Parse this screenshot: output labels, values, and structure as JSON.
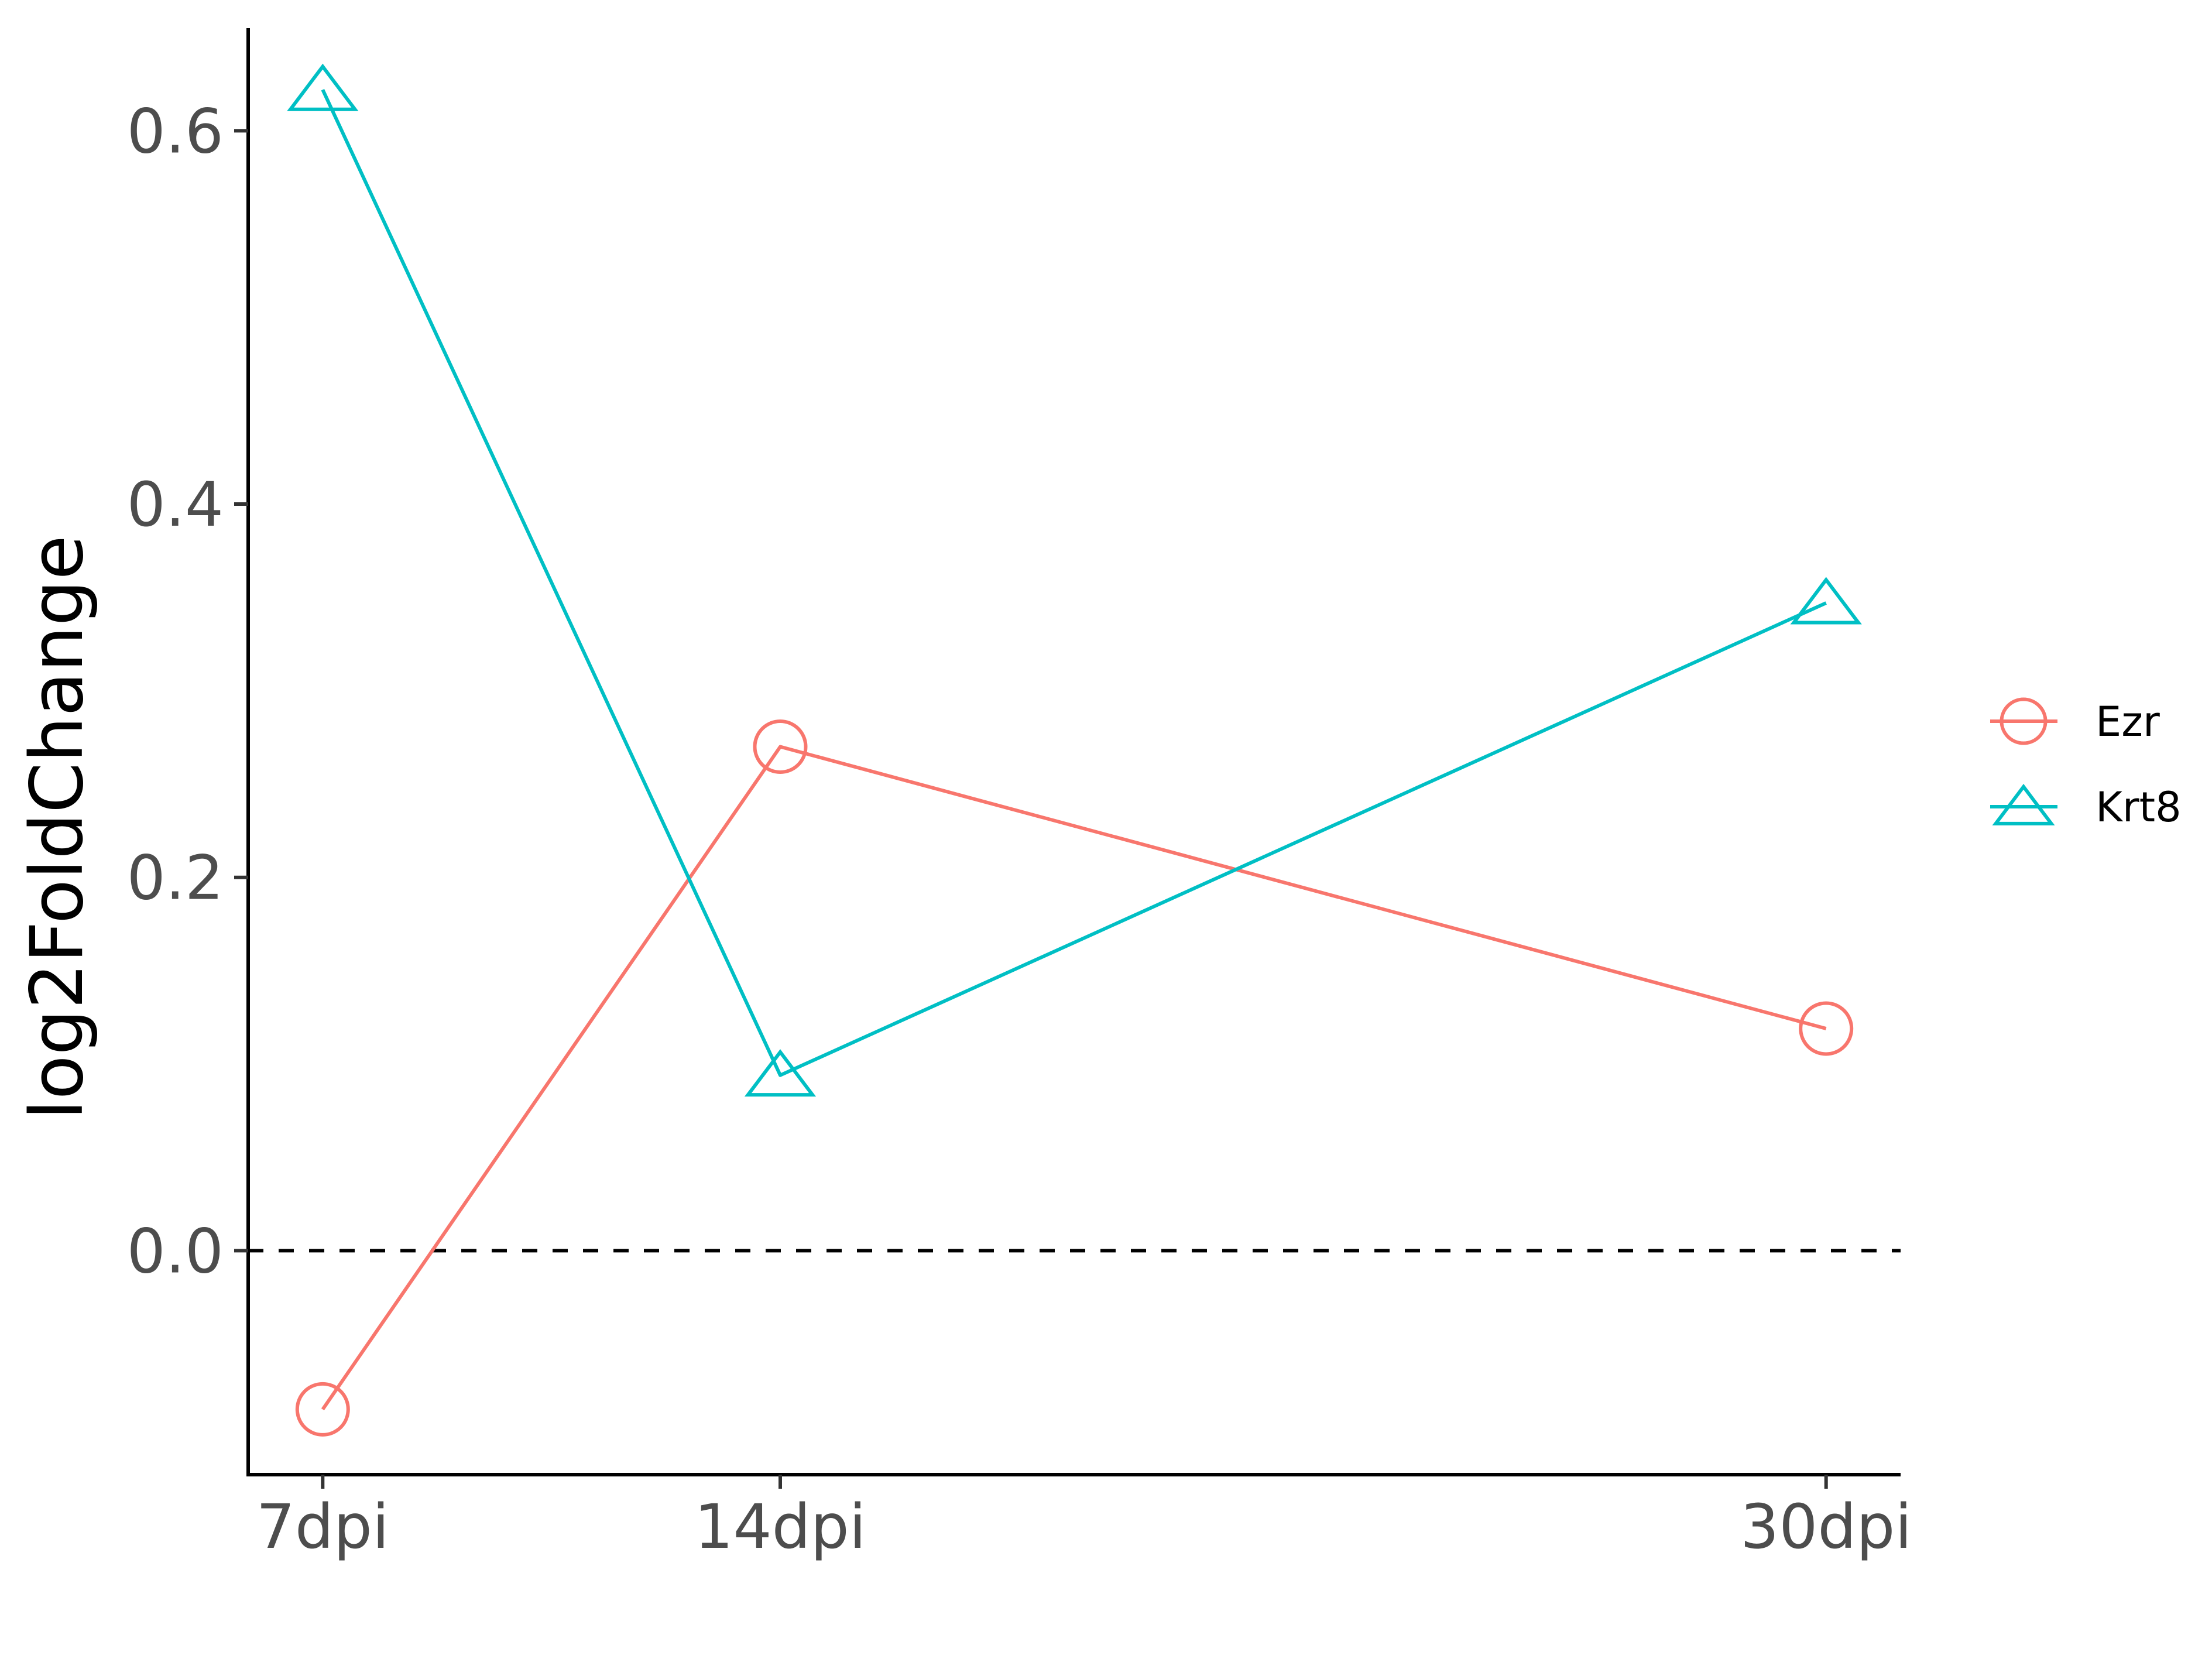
{
  "chart_data": {
    "type": "line",
    "title": "",
    "xlabel": "",
    "ylabel": "log2FoldChange",
    "x_categories": [
      "7dpi",
      "14dpi",
      "30dpi"
    ],
    "x_positions": [
      7,
      14,
      30
    ],
    "xlim": [
      5.86,
      31.14
    ],
    "ylim": [
      -0.12,
      0.655
    ],
    "y_ticks": [
      0.0,
      0.2,
      0.4,
      0.6
    ],
    "y_tick_labels": [
      "0.0",
      "0.2",
      "0.4",
      "0.6"
    ],
    "reference_line": {
      "y": 0,
      "style": "dashed",
      "color": "#000000"
    },
    "grid": false,
    "legend_placement": "right",
    "series": [
      {
        "name": "Ezr",
        "values": [
          -0.085,
          0.27,
          0.119
        ],
        "color": "#F8766D",
        "marker": "circle"
      },
      {
        "name": "Krt8",
        "values": [
          0.622,
          0.094,
          0.347
        ],
        "color": "#00BFC4",
        "marker": "triangle"
      }
    ]
  }
}
